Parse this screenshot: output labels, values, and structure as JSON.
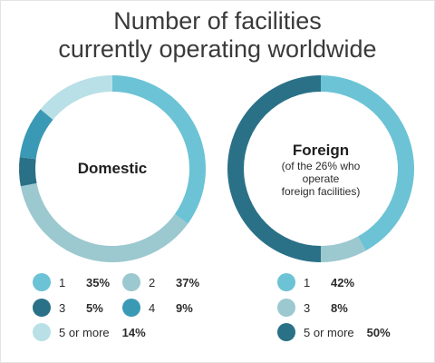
{
  "title_line1": "Number of facilities",
  "title_line2": "currently operating worldwide",
  "chart_data": [
    {
      "type": "pie",
      "donut": true,
      "center_label": "Domestic",
      "center_sublabel": "",
      "slices": [
        {
          "label": "1",
          "value": 35,
          "display": "35%",
          "color": "#6cc3d5"
        },
        {
          "label": "2",
          "value": 37,
          "display": "37%",
          "color": "#9cc8cf"
        },
        {
          "label": "3",
          "value": 5,
          "display": "5%",
          "color": "#2a7187"
        },
        {
          "label": "4",
          "value": 9,
          "display": "9%",
          "color": "#3a9ab6"
        },
        {
          "label": "5 or more",
          "value": 14,
          "display": "14%",
          "color": "#b8e0e6"
        }
      ]
    },
    {
      "type": "pie",
      "donut": true,
      "center_label": "Foreign",
      "center_sublabel_lines": [
        "(of the 26% who",
        "operate",
        "foreign facilities)"
      ],
      "slices": [
        {
          "label": "1",
          "value": 42,
          "display": "42%",
          "color": "#6cc3d5"
        },
        {
          "label": "3",
          "value": 8,
          "display": "8%",
          "color": "#9cc8cf"
        },
        {
          "label": "5 or more",
          "value": 50,
          "display": "50%",
          "color": "#2a7187"
        }
      ]
    }
  ]
}
